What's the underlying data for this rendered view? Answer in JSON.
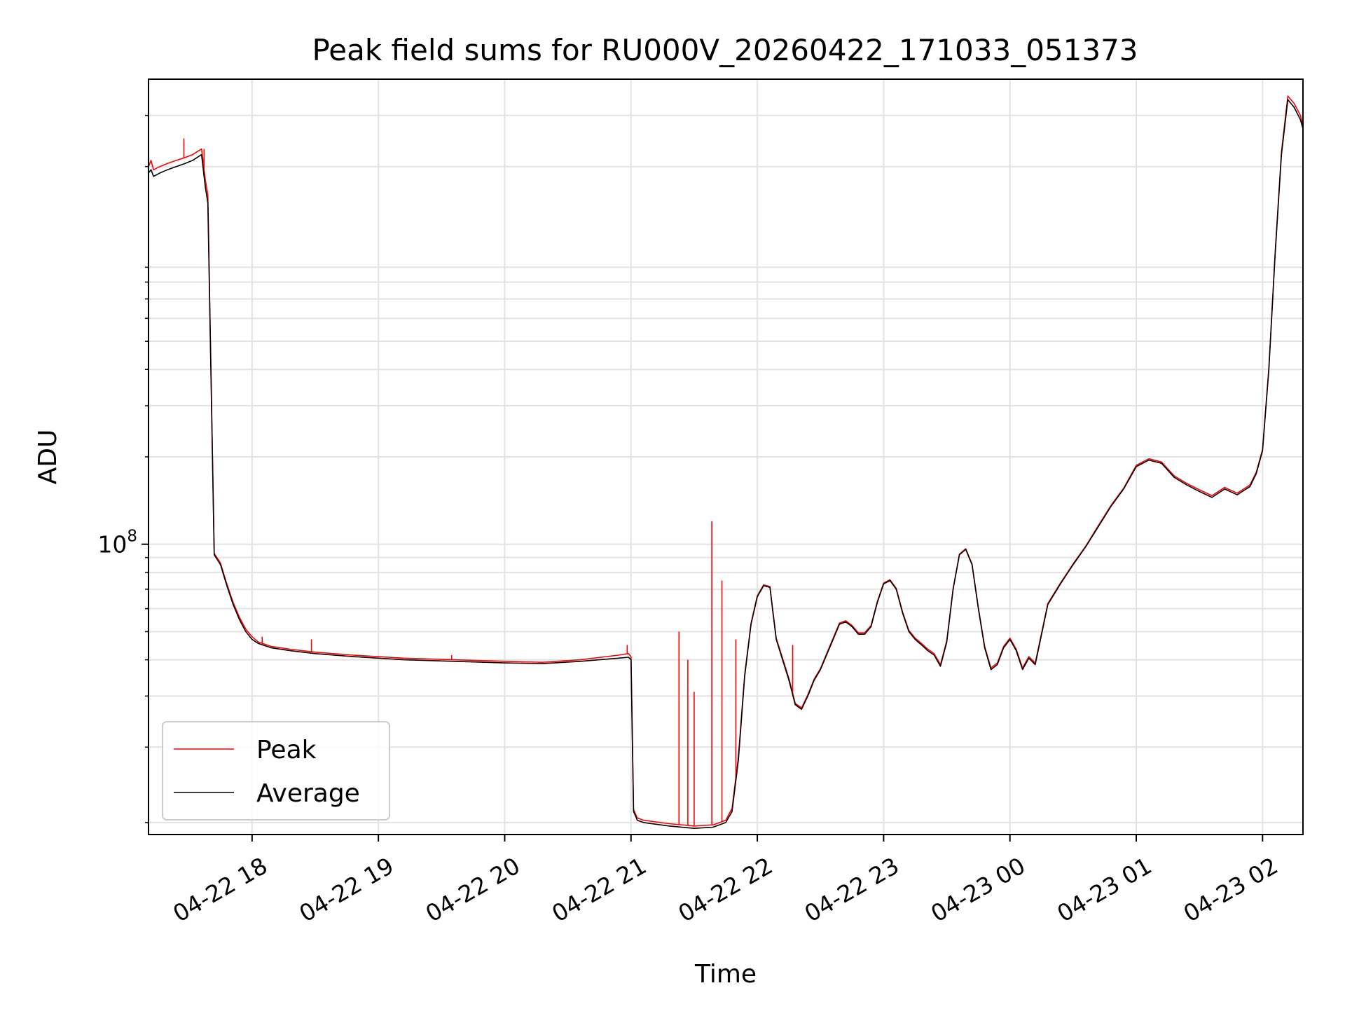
{
  "chart_data": {
    "type": "line",
    "title": "Peak field sums for RU000V_20260422_171033_051373",
    "xlabel": "Time",
    "ylabel": "ADU",
    "yscale": "log",
    "x_unit": "hours since 04-22 17:00",
    "xlim": [
      0.18,
      9.32
    ],
    "ylim": [
      10000000,
      4000000000
    ],
    "grid": true,
    "legend_position": "lower-left",
    "x_ticks": [
      {
        "value": 1,
        "label": "04-22 18"
      },
      {
        "value": 2,
        "label": "04-22 19"
      },
      {
        "value": 3,
        "label": "04-22 20"
      },
      {
        "value": 4,
        "label": "04-22 21"
      },
      {
        "value": 5,
        "label": "04-22 22"
      },
      {
        "value": 6,
        "label": "04-22 23"
      },
      {
        "value": 7,
        "label": "04-23 00"
      },
      {
        "value": 8,
        "label": "04-23 01"
      },
      {
        "value": 9,
        "label": "04-23 02"
      }
    ],
    "y_major_ticks": [
      {
        "value": 100000000,
        "base": "10",
        "exp": "8"
      }
    ],
    "y_minor_ticks": [
      11000000,
      20000000,
      30000000,
      40000000,
      50000000,
      60000000,
      70000000,
      80000000,
      90000000,
      200000000,
      300000000,
      400000000,
      500000000,
      600000000,
      700000000,
      800000000,
      900000000,
      2000000000,
      3000000000
    ],
    "series": [
      {
        "name": "Average",
        "color": "#000000",
        "x": [
          0.18,
          0.2,
          0.22,
          0.27,
          0.33,
          0.4,
          0.47,
          0.53,
          0.6,
          0.63,
          0.65,
          0.7,
          0.75,
          0.8,
          0.85,
          0.9,
          0.95,
          1.0,
          1.05,
          1.15,
          1.3,
          1.5,
          1.8,
          2.2,
          2.6,
          3.0,
          3.3,
          3.6,
          3.9,
          3.98,
          4.0,
          4.02,
          4.05,
          4.1,
          4.3,
          4.5,
          4.65,
          4.75,
          4.8,
          4.85,
          4.9,
          4.95,
          5.0,
          5.05,
          5.1,
          5.12,
          5.15,
          5.2,
          5.25,
          5.3,
          5.35,
          5.4,
          5.45,
          5.5,
          5.6,
          5.65,
          5.7,
          5.75,
          5.8,
          5.85,
          5.9,
          5.95,
          6.0,
          6.05,
          6.1,
          6.15,
          6.2,
          6.25,
          6.3,
          6.35,
          6.4,
          6.45,
          6.5,
          6.55,
          6.6,
          6.65,
          6.7,
          6.75,
          6.8,
          6.85,
          6.9,
          6.95,
          7.0,
          7.05,
          7.1,
          7.15,
          7.2,
          7.3,
          7.4,
          7.5,
          7.6,
          7.7,
          7.8,
          7.9,
          8.0,
          8.1,
          8.2,
          8.3,
          8.4,
          8.5,
          8.6,
          8.65,
          8.7,
          8.8,
          8.9,
          8.95,
          9.0,
          9.05,
          9.1,
          9.15,
          9.2,
          9.25,
          9.3,
          9.32
        ],
        "y": [
          1900000000,
          1950000000,
          1850000000,
          1900000000,
          1950000000,
          2000000000,
          2050000000,
          2100000000,
          2200000000,
          1700000000,
          1500000000,
          92000000,
          85000000,
          72000000,
          62000000,
          55000000,
          50000000,
          47000000,
          45500000,
          44000000,
          43000000,
          42000000,
          41000000,
          40000000,
          39500000,
          39000000,
          38800000,
          39500000,
          40500000,
          40800000,
          40000000,
          12000000,
          11200000,
          11000000,
          10700000,
          10500000,
          10600000,
          11000000,
          12000000,
          18000000,
          35000000,
          53000000,
          66000000,
          72000000,
          71000000,
          60000000,
          47000000,
          40000000,
          34000000,
          28000000,
          27000000,
          30000000,
          34000000,
          37000000,
          47000000,
          53000000,
          54000000,
          52000000,
          49000000,
          49000000,
          52000000,
          63000000,
          73000000,
          75000000,
          70000000,
          58000000,
          50000000,
          47000000,
          45000000,
          43000000,
          41500000,
          38000000,
          46000000,
          70000000,
          92000000,
          96000000,
          85000000,
          60000000,
          44000000,
          37000000,
          38500000,
          44000000,
          47000000,
          43000000,
          37000000,
          40500000,
          38500000,
          62000000,
          73000000,
          85000000,
          98000000,
          115000000,
          135000000,
          155000000,
          185000000,
          195000000,
          190000000,
          170000000,
          160000000,
          152000000,
          145000000,
          150000000,
          155000000,
          148000000,
          158000000,
          175000000,
          210000000,
          400000000,
          1000000000,
          2200000000,
          3400000000,
          3200000000,
          2900000000,
          2700000000
        ]
      },
      {
        "name": "Peak",
        "color": "#ff0000",
        "x": [
          0.18,
          0.2,
          0.22,
          0.27,
          0.33,
          0.4,
          0.47,
          0.53,
          0.6,
          0.63,
          0.65,
          0.7,
          0.75,
          0.8,
          0.85,
          0.9,
          0.95,
          1.0,
          1.05,
          1.15,
          1.3,
          1.5,
          1.8,
          2.2,
          2.6,
          3.0,
          3.3,
          3.6,
          3.9,
          3.98,
          4.0,
          4.02,
          4.05,
          4.1,
          4.3,
          4.5,
          4.65,
          4.75,
          4.8,
          4.85,
          4.9,
          4.95,
          5.0,
          5.05,
          5.1,
          5.12,
          5.15,
          5.2,
          5.25,
          5.3,
          5.35,
          5.4,
          5.45,
          5.5,
          5.6,
          5.65,
          5.7,
          5.75,
          5.8,
          5.85,
          5.9,
          5.95,
          6.0,
          6.05,
          6.1,
          6.15,
          6.2,
          6.25,
          6.3,
          6.35,
          6.4,
          6.45,
          6.5,
          6.55,
          6.6,
          6.65,
          6.7,
          6.75,
          6.8,
          6.85,
          6.9,
          6.95,
          7.0,
          7.05,
          7.1,
          7.15,
          7.2,
          7.3,
          7.4,
          7.5,
          7.6,
          7.7,
          7.8,
          7.9,
          8.0,
          8.1,
          8.2,
          8.3,
          8.4,
          8.5,
          8.6,
          8.65,
          8.7,
          8.8,
          8.9,
          8.95,
          9.0,
          9.05,
          9.1,
          9.15,
          9.2,
          9.25,
          9.3,
          9.32
        ],
        "y": [
          2000000000,
          2100000000,
          1950000000,
          2000000000,
          2050000000,
          2100000000,
          2150000000,
          2200000000,
          2300000000,
          1800000000,
          1600000000,
          93000000,
          86000000,
          73000000,
          63000000,
          56000000,
          51000000,
          48000000,
          46000000,
          44500000,
          43500000,
          42500000,
          41500000,
          40500000,
          40000000,
          39500000,
          39200000,
          40000000,
          41500000,
          42000000,
          41000000,
          12200000,
          11400000,
          11200000,
          10900000,
          10700000,
          10800000,
          11200000,
          12300000,
          18500000,
          35500000,
          53500000,
          66500000,
          72500000,
          71500000,
          60500000,
          47500000,
          40500000,
          34500000,
          28300000,
          27300000,
          30300000,
          34300000,
          37300000,
          47500000,
          53500000,
          54500000,
          52500000,
          49500000,
          49500000,
          52500000,
          63500000,
          73500000,
          75500000,
          70500000,
          58500000,
          50500000,
          47500000,
          45500000,
          43500000,
          42000000,
          38500000,
          46500000,
          70500000,
          92500000,
          96500000,
          85500000,
          60500000,
          44500000,
          37500000,
          39000000,
          44500000,
          47500000,
          43500000,
          37500000,
          41000000,
          39000000,
          62500000,
          73500000,
          85500000,
          98500000,
          116000000,
          136000000,
          156000000,
          187000000,
          197000000,
          192000000,
          172000000,
          162000000,
          154000000,
          147000000,
          152000000,
          157000000,
          150000000,
          160000000,
          177000000,
          212000000,
          405000000,
          1010000000,
          2250000000,
          3500000000,
          3300000000,
          3000000000,
          2750000000
        ]
      }
    ],
    "peak_spikes": [
      {
        "x": 0.46,
        "y": 2500000000
      },
      {
        "x": 0.62,
        "y": 2300000000
      },
      {
        "x": 1.08,
        "y": 48000000
      },
      {
        "x": 1.47,
        "y": 47000000
      },
      {
        "x": 2.58,
        "y": 41500000
      },
      {
        "x": 3.97,
        "y": 45000000
      },
      {
        "x": 4.38,
        "y": 50000000
      },
      {
        "x": 4.45,
        "y": 40000000
      },
      {
        "x": 4.5,
        "y": 31000000
      },
      {
        "x": 4.64,
        "y": 120000000
      },
      {
        "x": 4.72,
        "y": 75000000
      },
      {
        "x": 4.83,
        "y": 47000000
      },
      {
        "x": 5.28,
        "y": 45000000
      }
    ]
  },
  "legend": {
    "peak_label": "Peak",
    "average_label": "Average"
  }
}
